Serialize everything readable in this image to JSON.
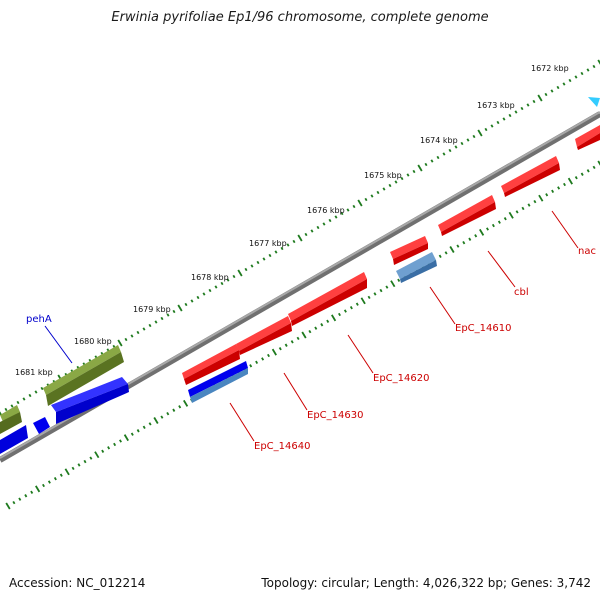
{
  "title": "Erwinia pyrifoliae Ep1/96 chromosome, complete genome",
  "footer": {
    "accession": "Accession: NC_012214",
    "summary": "Topology: circular; Length: 4,026,322 bp; Genes: 3,742"
  },
  "colors": {
    "backbone": "#808080",
    "tick": "#1e7a1e",
    "forward_cds": "#ff0000",
    "reverse_cds": "#0000ff",
    "pseudo": "#4a86c0",
    "green_gene": "#6b8e23",
    "label_red": "#cc0000",
    "label_blue": "#0000cc",
    "marker": "#33ccff"
  },
  "ticks": [
    {
      "label": "1672 kbp",
      "kbp": 1672
    },
    {
      "label": "1673 kbp",
      "kbp": 1673
    },
    {
      "label": "1674 kbp",
      "kbp": 1674
    },
    {
      "label": "1675 kbp",
      "kbp": 1675
    },
    {
      "label": "1676 kbp",
      "kbp": 1676
    },
    {
      "label": "1677 kbp",
      "kbp": 1677
    },
    {
      "label": "1678 kbp",
      "kbp": 1678
    },
    {
      "label": "1679 kbp",
      "kbp": 1679
    },
    {
      "label": "1680 kbp",
      "kbp": 1680
    },
    {
      "label": "1681 kbp",
      "kbp": 1681
    }
  ],
  "gene_labels": [
    {
      "text": "nac",
      "color": "red"
    },
    {
      "text": "cbl",
      "color": "red"
    },
    {
      "text": "EpC_14610",
      "color": "red"
    },
    {
      "text": "EpC_14620",
      "color": "red"
    },
    {
      "text": "EpC_14630",
      "color": "red"
    },
    {
      "text": "EpC_14640",
      "color": "red"
    },
    {
      "text": "pehA",
      "color": "blue"
    }
  ]
}
